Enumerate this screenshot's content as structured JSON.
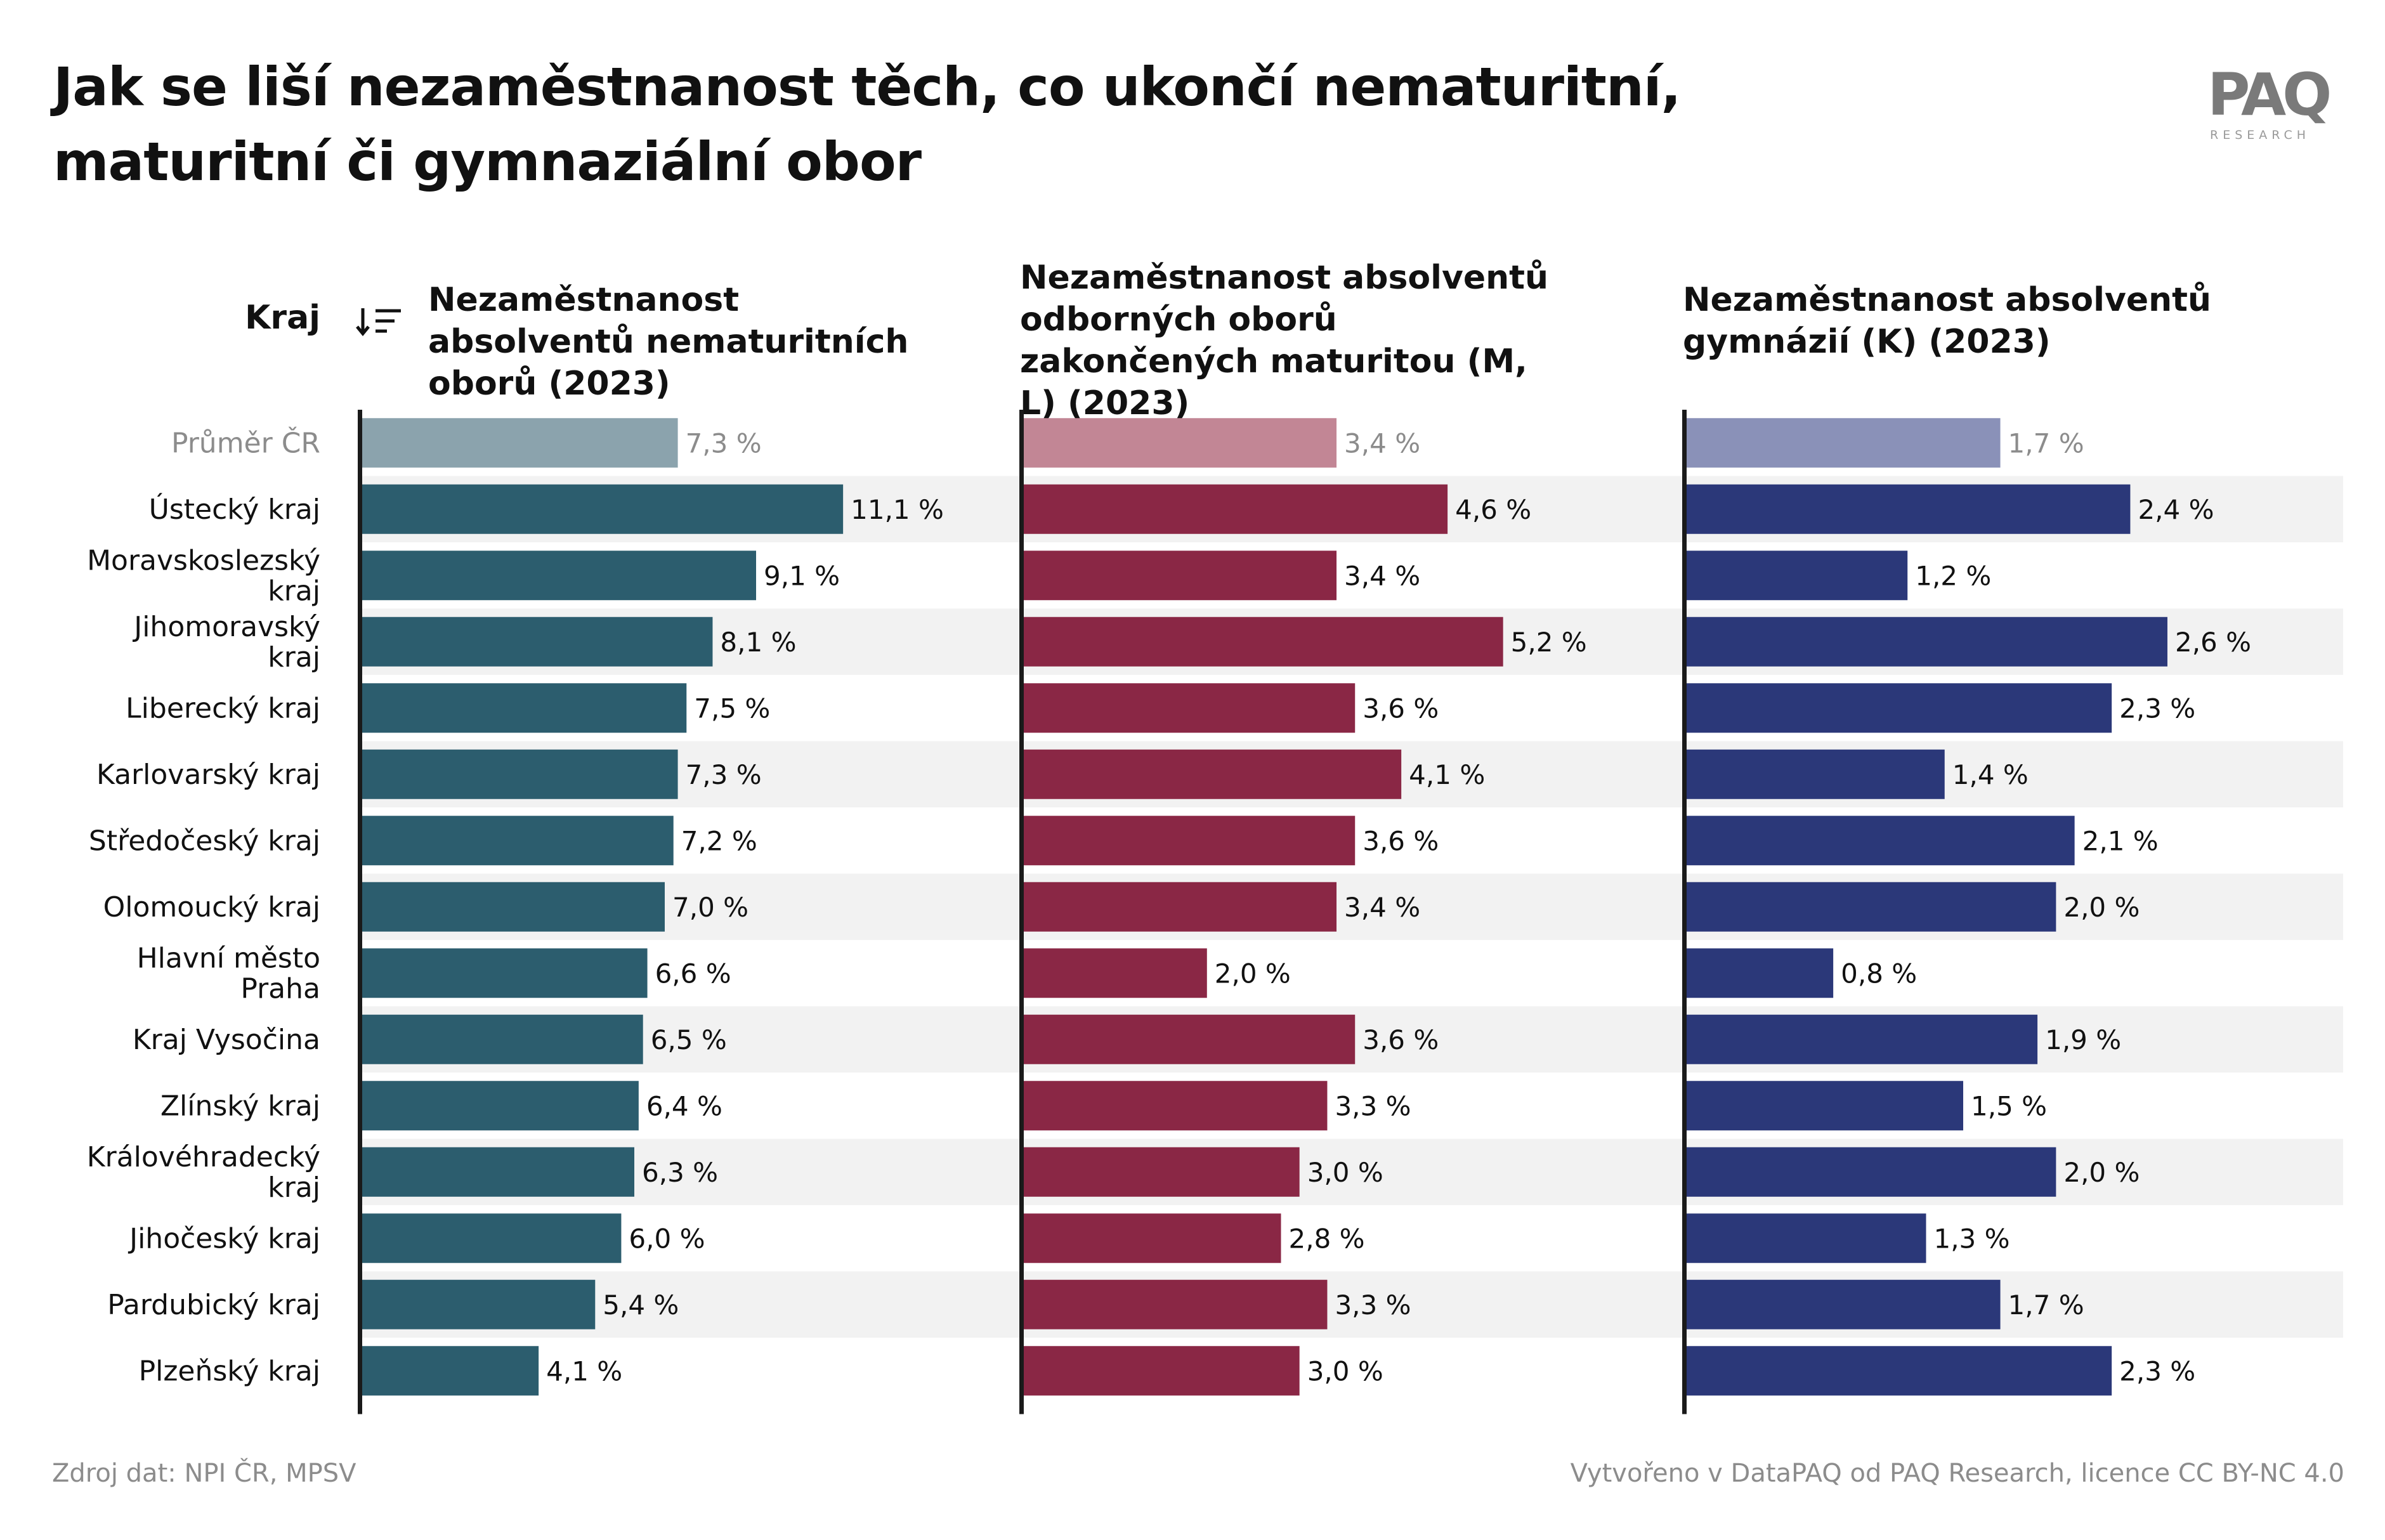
{
  "title": "Jak se liší nezaměstnanost těch, co ukončí nematuritní, maturitní či gymnaziální obor",
  "logo": {
    "text": "PAQ",
    "sub": "RESEARCH"
  },
  "kraj_header": "Kraj",
  "sort_icon": "sort-descending-icon",
  "footer": {
    "source": "Zdroj dat: NPI ČR, MPSV",
    "credit": "Vytvořeno v DataPAQ od PAQ Research, licence CC BY-NC 4.0"
  },
  "colors": {
    "text": "#111111",
    "muted": "#8c8c8c",
    "stripe": "#f2f2f2",
    "axis": "#1a1a1a"
  },
  "chart_data": {
    "type": "bar",
    "orientation": "horizontal",
    "categories": [
      "Průměr ČR",
      "Ústecký kraj",
      "Moravskoslezský kraj",
      "Jihomoravský kraj",
      "Liberecký kraj",
      "Karlovarský kraj",
      "Středočeský kraj",
      "Olomoucký kraj",
      "Hlavní město Praha",
      "Kraj Vysočina",
      "Zlínský kraj",
      "Královéhradecký kraj",
      "Jihočeský kraj",
      "Pardubický kraj",
      "Plzeňský kraj"
    ],
    "highlight_first_category": true,
    "series": [
      {
        "name": "Nezaměstnanost absolventů nematuritních oborů (2023)",
        "color": "#2c5d6e",
        "average_color": "#8ba3ad",
        "values": [
          7.3,
          11.1,
          9.1,
          8.1,
          7.5,
          7.3,
          7.2,
          7.0,
          6.6,
          6.5,
          6.4,
          6.3,
          6.0,
          5.4,
          4.1
        ],
        "labels": [
          "7,3 %",
          "11,1 %",
          "9,1 %",
          "8,1 %",
          "7,5 %",
          "7,3 %",
          "7,2 %",
          "7,0 %",
          "6,6 %",
          "6,5 %",
          "6,4 %",
          "6,3 %",
          "6,0 %",
          "5,4 %",
          "4,1 %"
        ],
        "xlim": [
          0,
          14.0
        ]
      },
      {
        "name": "Nezaměstnanost absolventů odborných oborů zakončených maturitou (M, L) (2023)",
        "color": "#8a2745",
        "average_color": "#c28695",
        "values": [
          3.4,
          4.6,
          3.4,
          5.2,
          3.6,
          4.1,
          3.6,
          3.4,
          2.0,
          3.6,
          3.3,
          3.0,
          2.8,
          3.3,
          3.0
        ],
        "labels": [
          "3,4 %",
          "4,6 %",
          "3,4 %",
          "5,2 %",
          "3,6 %",
          "4,1 %",
          "3,6 %",
          "3,4 %",
          "2,0 %",
          "3,6 %",
          "3,3 %",
          "3,0 %",
          "2,8 %",
          "3,3 %",
          "3,0 %"
        ],
        "xlim": [
          0,
          6.58
        ]
      },
      {
        "name": "Nezaměstnanost absolventů gymnázií (K) (2023)",
        "color": "#2b3879",
        "average_color": "#8a91b8",
        "values": [
          1.7,
          2.4,
          1.2,
          2.6,
          2.3,
          1.4,
          2.1,
          2.0,
          0.8,
          1.9,
          1.5,
          2.0,
          1.3,
          1.7,
          2.3
        ],
        "labels": [
          "1,7 %",
          "2,4 %",
          "1,2 %",
          "2,6 %",
          "2,3 %",
          "1,4 %",
          "2,1 %",
          "2,0 %",
          "0,8 %",
          "1,9 %",
          "1,5 %",
          "2,0 %",
          "1,3 %",
          "1,7 %",
          "2,3 %"
        ],
        "xlim": [
          0,
          3.28
        ]
      }
    ],
    "grid": false,
    "legend": "none"
  }
}
